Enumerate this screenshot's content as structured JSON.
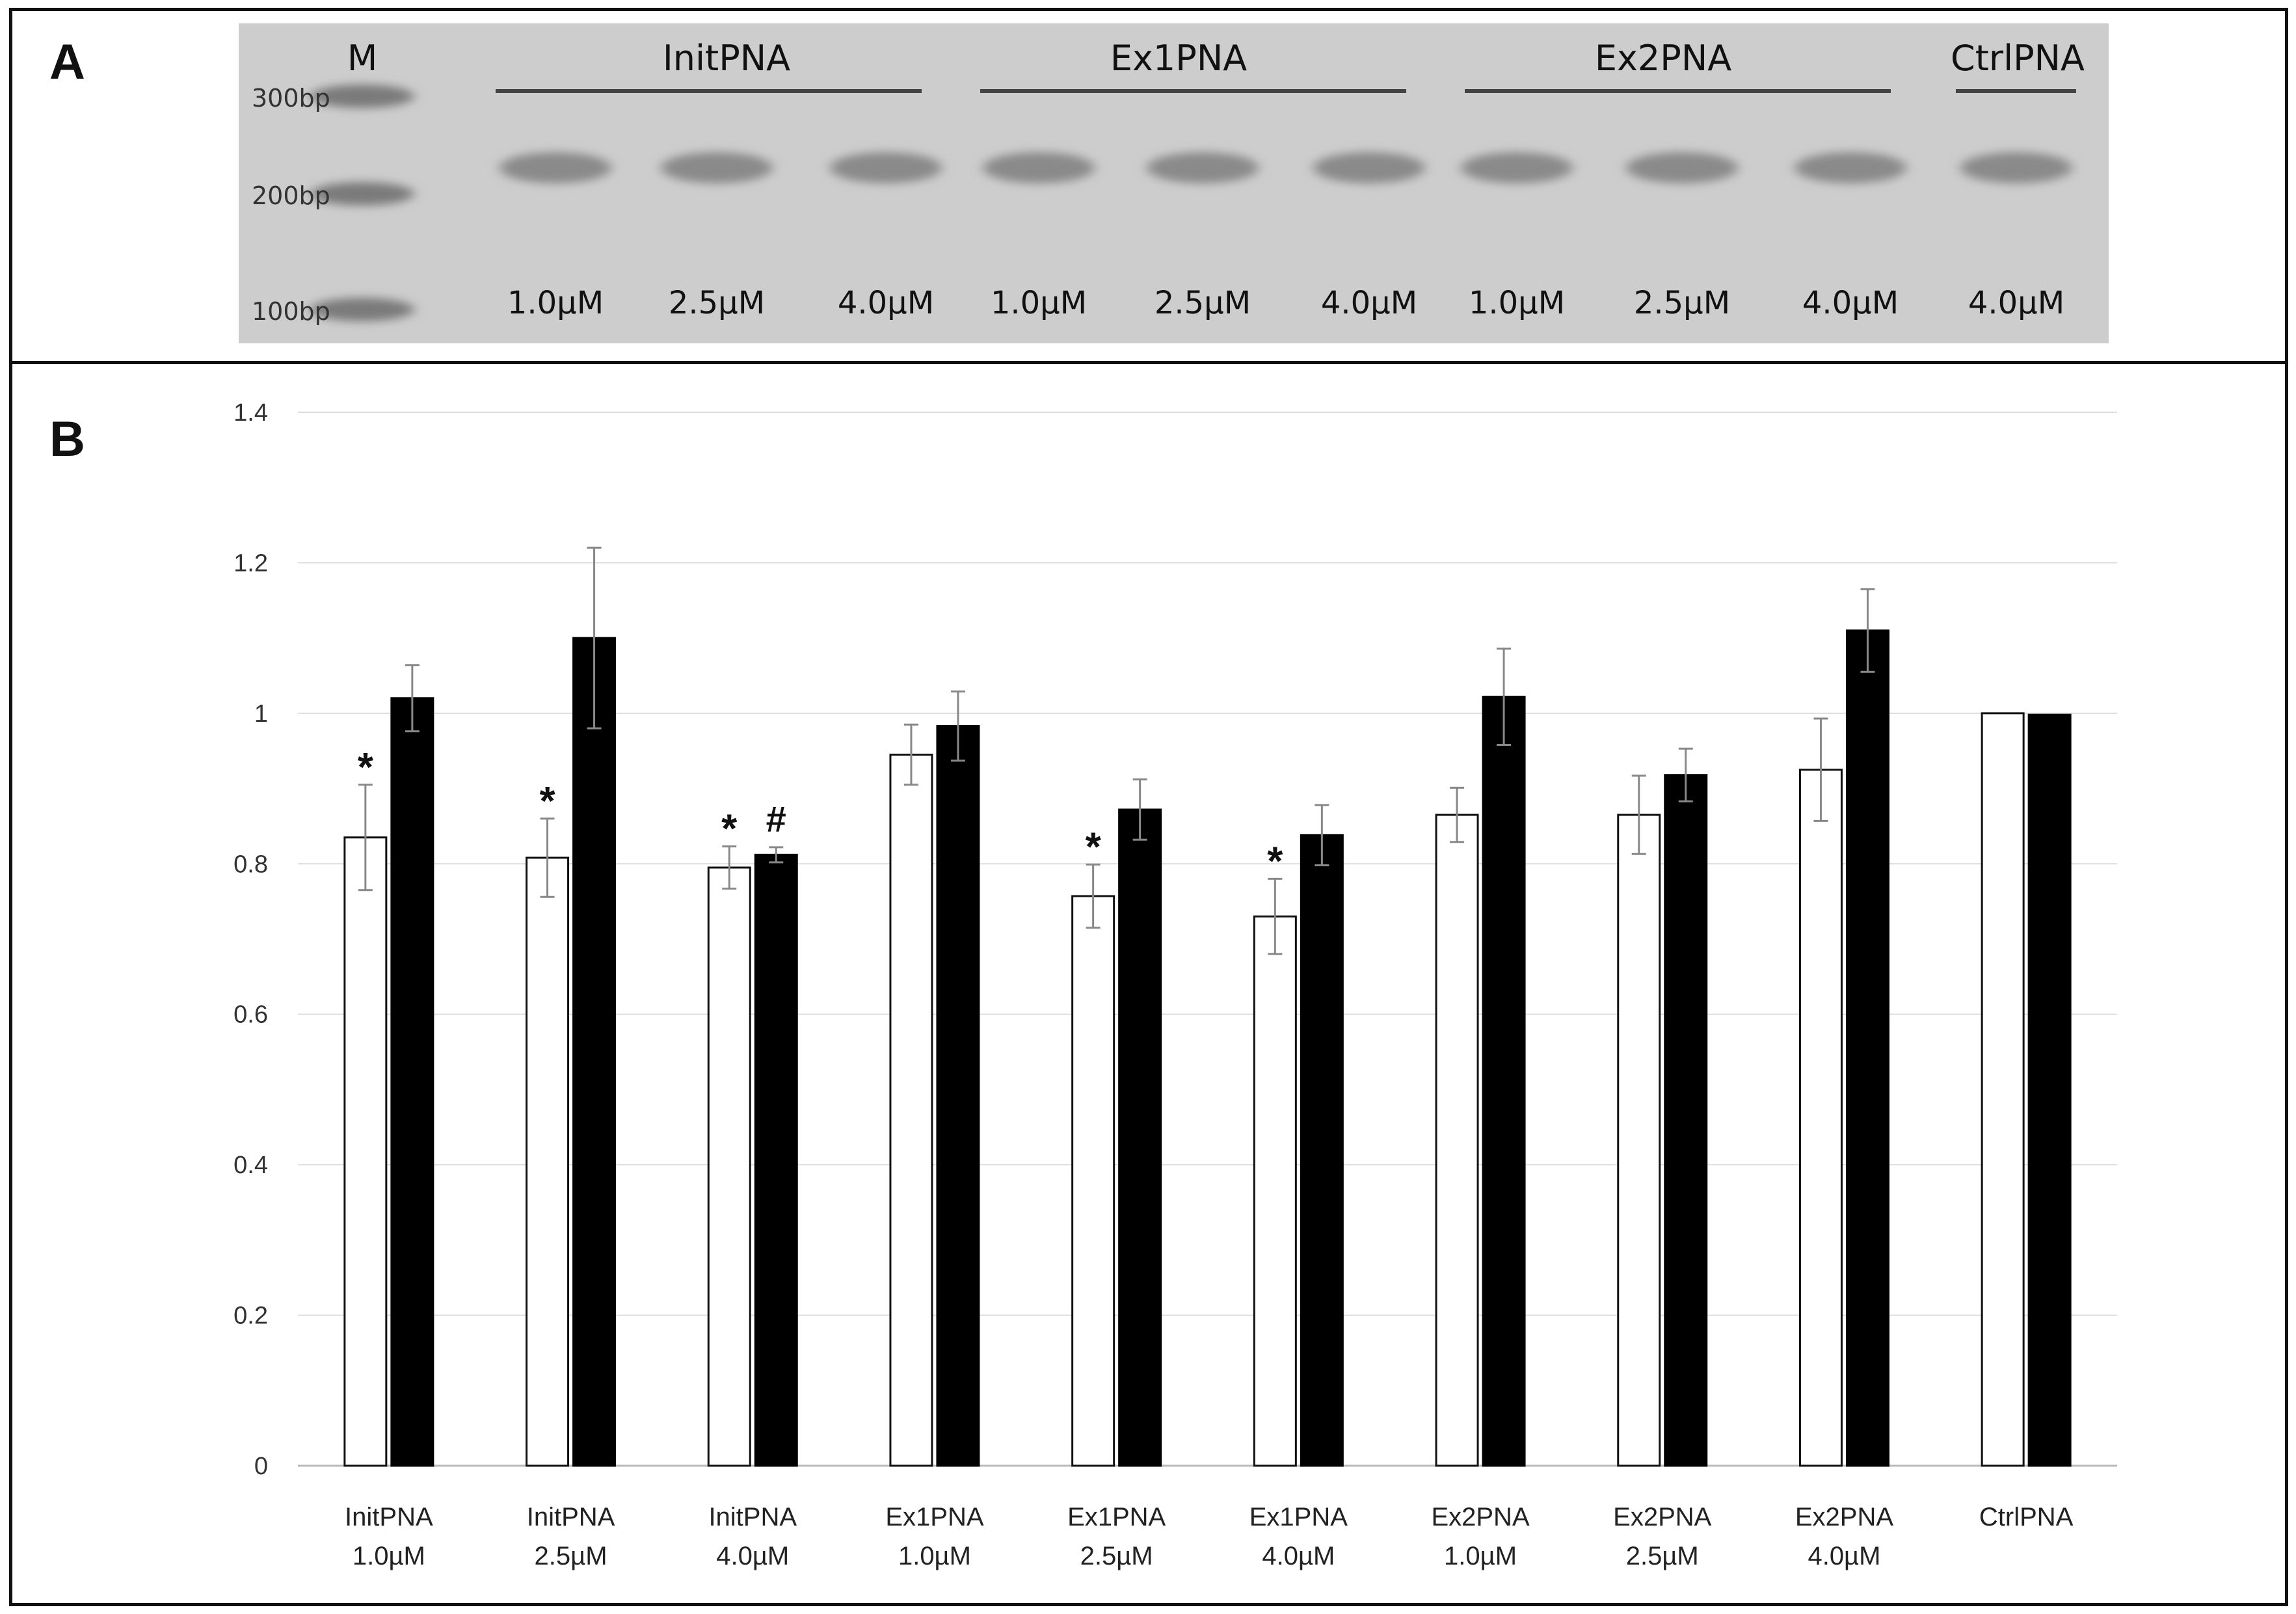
{
  "panels": {
    "a_label": "A",
    "b_label": "B"
  },
  "gel": {
    "marker_label": "M",
    "bp_labels": [
      "300bp",
      "200bp",
      "100bp"
    ],
    "groups": [
      "InitPNA",
      "Ex1PNA",
      "Ex2PNA",
      "CtrlPNA"
    ],
    "lane_concentrations": [
      "1.0µM",
      "2.5µM",
      "4.0µM",
      "1.0µM",
      "2.5µM",
      "4.0µM",
      "1.0µM",
      "2.5µM",
      "4.0µM",
      "4.0µM"
    ],
    "colors": {
      "background": "#cdcdcd",
      "band": "#8a8a8a",
      "marker": "#7a7a7a"
    }
  },
  "chart_data": {
    "type": "bar",
    "categories": [
      [
        "InitPNA",
        "1.0µM"
      ],
      [
        "InitPNA",
        "2.5µM"
      ],
      [
        "InitPNA",
        "4.0µM"
      ],
      [
        "Ex1PNA",
        "1.0µM"
      ],
      [
        "Ex1PNA",
        "2.5µM"
      ],
      [
        "Ex1PNA",
        "4.0µM"
      ],
      [
        "Ex2PNA",
        "1.0µM"
      ],
      [
        "Ex2PNA",
        "2.5µM"
      ],
      [
        "Ex2PNA",
        "4.0µM"
      ],
      [
        "CtrlPNA",
        ""
      ]
    ],
    "series": [
      {
        "values": [
          0.835,
          0.808,
          0.795,
          0.945,
          0.757,
          0.73,
          0.865,
          0.865,
          0.925,
          1.0
        ],
        "errors": [
          0.07,
          0.052,
          0.028,
          0.04,
          0.042,
          0.05,
          0.036,
          0.052,
          0.068,
          0.0
        ],
        "fill": "#ffffff",
        "stroke": "#111111"
      },
      {
        "values": [
          1.02,
          1.1,
          0.812,
          0.983,
          0.872,
          0.838,
          1.022,
          0.918,
          1.11,
          0.998
        ],
        "errors": [
          0.044,
          0.12,
          0.01,
          0.046,
          0.04,
          0.04,
          0.064,
          0.035,
          0.055,
          0.0
        ],
        "fill": "#000000",
        "stroke": "#000000"
      }
    ],
    "yticks": [
      "0",
      "0.2",
      "0.4",
      "0.6",
      "0.8",
      "1",
      "1.2",
      "1.4"
    ],
    "ylim": [
      0,
      1.4
    ],
    "grid": true,
    "legend": "none",
    "annotations": [
      {
        "category": 0,
        "series": 0,
        "symbol": "*"
      },
      {
        "category": 1,
        "series": 0,
        "symbol": "*"
      },
      {
        "category": 2,
        "series": 0,
        "symbol": "*"
      },
      {
        "category": 2,
        "series": 1,
        "symbol": "#"
      },
      {
        "category": 4,
        "series": 0,
        "symbol": "*"
      },
      {
        "category": 5,
        "series": 0,
        "symbol": "*"
      }
    ],
    "colors": {
      "grid": "#dddddd",
      "axis": "#bbbbbb",
      "errorbar": "#888888"
    }
  }
}
